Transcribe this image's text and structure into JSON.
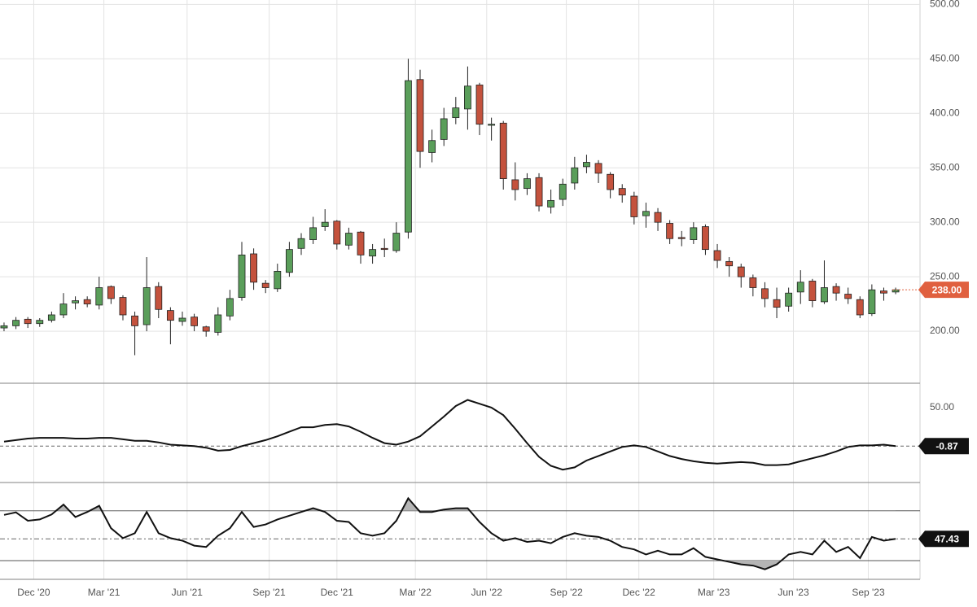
{
  "chart_data": {
    "type": "candlestick",
    "x": [
      0,
      1,
      2,
      3,
      4,
      5,
      6,
      7,
      8,
      9,
      10,
      11,
      12,
      13,
      14,
      15,
      16,
      17,
      18,
      19,
      20,
      21,
      22,
      23,
      24,
      25,
      26,
      27,
      28,
      29,
      30,
      31,
      32,
      33,
      34,
      35,
      36,
      37,
      38,
      39,
      40,
      41,
      42,
      43,
      44,
      45,
      46,
      47,
      48,
      49,
      50,
      51,
      52,
      53,
      54,
      55,
      56,
      57,
      58,
      59,
      60,
      61,
      62,
      63,
      64,
      65,
      66,
      67,
      68,
      69,
      70,
      71,
      72,
      73,
      74,
      75
    ],
    "open": [
      203,
      205,
      211,
      207,
      210,
      215,
      226,
      229,
      224,
      241,
      231,
      214,
      206,
      241,
      219,
      209,
      213,
      204,
      199,
      214,
      231,
      271,
      244,
      239,
      254,
      276,
      284,
      296,
      301,
      279,
      291,
      269,
      276,
      274,
      291,
      431,
      364,
      376,
      396,
      404,
      426,
      389,
      391,
      339,
      331,
      341,
      314,
      321,
      336,
      351,
      354,
      344,
      331,
      324,
      306,
      309,
      299,
      286,
      284,
      296,
      274,
      264,
      259,
      249,
      239,
      229,
      223,
      236,
      246,
      227,
      241,
      234,
      229,
      216,
      237,
      236
    ],
    "high": [
      208,
      213,
      213,
      212,
      218,
      235,
      232,
      232,
      250,
      242,
      233,
      218,
      268,
      245,
      222,
      218,
      216,
      205,
      222,
      238,
      282,
      276,
      247,
      262,
      282,
      290,
      305,
      312,
      302,
      295,
      292,
      280,
      285,
      300,
      450,
      440,
      385,
      405,
      415,
      443,
      428,
      396,
      393,
      355,
      345,
      345,
      330,
      340,
      360,
      362,
      357,
      346,
      335,
      328,
      318,
      313,
      302,
      292,
      300,
      298,
      280,
      268,
      262,
      252,
      245,
      240,
      240,
      256,
      248,
      265,
      244,
      240,
      232,
      243,
      240,
      240
    ],
    "low": [
      200,
      202,
      203,
      204,
      208,
      212,
      220,
      222,
      220,
      225,
      210,
      178,
      200,
      212,
      188,
      205,
      200,
      195,
      196,
      210,
      228,
      238,
      235,
      236,
      250,
      270,
      280,
      292,
      275,
      275,
      262,
      262,
      268,
      272,
      285,
      350,
      355,
      370,
      390,
      385,
      380,
      375,
      330,
      320,
      325,
      310,
      308,
      315,
      330,
      345,
      336,
      322,
      318,
      298,
      295,
      292,
      280,
      278,
      280,
      270,
      258,
      250,
      240,
      232,
      222,
      212,
      218,
      225,
      222,
      225,
      228,
      225,
      212,
      214,
      228,
      234
    ],
    "close": [
      205,
      210,
      207,
      210,
      215,
      225,
      228,
      225,
      240,
      230,
      215,
      205,
      240,
      220,
      210,
      212,
      205,
      200,
      215,
      230,
      270,
      245,
      240,
      255,
      275,
      285,
      295,
      300,
      280,
      290,
      270,
      275,
      275,
      290,
      430,
      365,
      375,
      395,
      405,
      425,
      390,
      390,
      340,
      330,
      340,
      315,
      320,
      335,
      350,
      355,
      345,
      330,
      325,
      305,
      310,
      300,
      285,
      285,
      295,
      275,
      265,
      260,
      250,
      240,
      230,
      222,
      235,
      245,
      228,
      240,
      235,
      230,
      215,
      238,
      235,
      238
    ],
    "up_color": "#5a9e5a",
    "down_color": "#c4523d",
    "xlim": [
      -0.34,
      77.05
    ],
    "xticks": [
      {
        "value": 2.5,
        "label": "Dec '20"
      },
      {
        "value": 8.4,
        "label": "Mar '21"
      },
      {
        "value": 15.4,
        "label": "Jun '21"
      },
      {
        "value": 22.3,
        "label": "Sep '21"
      },
      {
        "value": 28,
        "label": "Dec '21"
      },
      {
        "value": 34.6,
        "label": "Mar '22"
      },
      {
        "value": 40.6,
        "label": "Jun '22"
      },
      {
        "value": 47.3,
        "label": "Sep '22"
      },
      {
        "value": 53.4,
        "label": "Dec '22"
      },
      {
        "value": 59.7,
        "label": "Mar '23"
      },
      {
        "value": 66.4,
        "label": "Jun '23"
      },
      {
        "value": 72.7,
        "label": "Sep '23"
      }
    ],
    "ylim": [
      153,
      504
    ],
    "yticks": [
      {
        "value": 200,
        "label": "200.00"
      },
      {
        "value": 250,
        "label": "250.00"
      },
      {
        "value": 300,
        "label": "300.00"
      },
      {
        "value": 350,
        "label": "350.00"
      },
      {
        "value": 400,
        "label": "400.00"
      },
      {
        "value": 450,
        "label": "450.00"
      },
      {
        "value": 500,
        "label": "500.00"
      }
    ],
    "last_price": {
      "value": 238,
      "label": "238.00"
    },
    "last_price_color": "#e0603f",
    "grid": true,
    "indicators": [
      {
        "type": "line",
        "color": "#111111",
        "values": [
          5,
          7,
          9,
          10,
          10,
          10,
          9,
          9,
          10,
          10,
          8,
          6,
          6,
          4,
          1,
          0,
          -1,
          -3,
          -7,
          -6,
          -1,
          3,
          7,
          12,
          18,
          24,
          24,
          27,
          28,
          25,
          18,
          10,
          3,
          1,
          5,
          12,
          25,
          38,
          52,
          60,
          55,
          50,
          40,
          22,
          3,
          -15,
          -27,
          -32,
          -29,
          -20,
          -14,
          -8,
          -2,
          0,
          -2,
          -8,
          -14,
          -18,
          -21,
          -23,
          -24,
          -23,
          -22,
          -23,
          -26,
          -26,
          -25,
          -21,
          -17,
          -13,
          -8,
          -2,
          0,
          0,
          1,
          -0.87
        ],
        "ylim": [
          -49,
          81
        ],
        "yticks": [
          {
            "value": 50,
            "label": "50.00"
          }
        ],
        "last": -0.87
      },
      {
        "type": "line",
        "color": "#111111",
        "values": [
          66.7,
          68.7,
          62,
          63,
          67,
          75,
          65,
          69,
          74,
          56,
          48,
          52,
          69,
          52,
          48,
          46,
          42,
          41,
          50,
          56,
          69,
          57,
          59,
          63,
          66,
          69,
          72,
          69,
          62,
          61,
          52,
          50,
          52,
          62,
          80,
          69,
          69,
          71,
          72,
          72,
          61,
          52,
          46,
          48,
          45,
          46,
          44,
          49,
          52,
          50,
          49,
          46,
          41,
          39,
          35,
          38,
          35,
          35,
          40,
          33,
          31,
          29,
          27,
          26,
          23,
          27,
          35,
          37,
          35,
          46,
          37,
          41,
          32,
          49,
          46,
          47.43
        ],
        "ylim": [
          15,
          92
        ],
        "levels": [
          70,
          30
        ],
        "last": 47.43
      }
    ]
  }
}
